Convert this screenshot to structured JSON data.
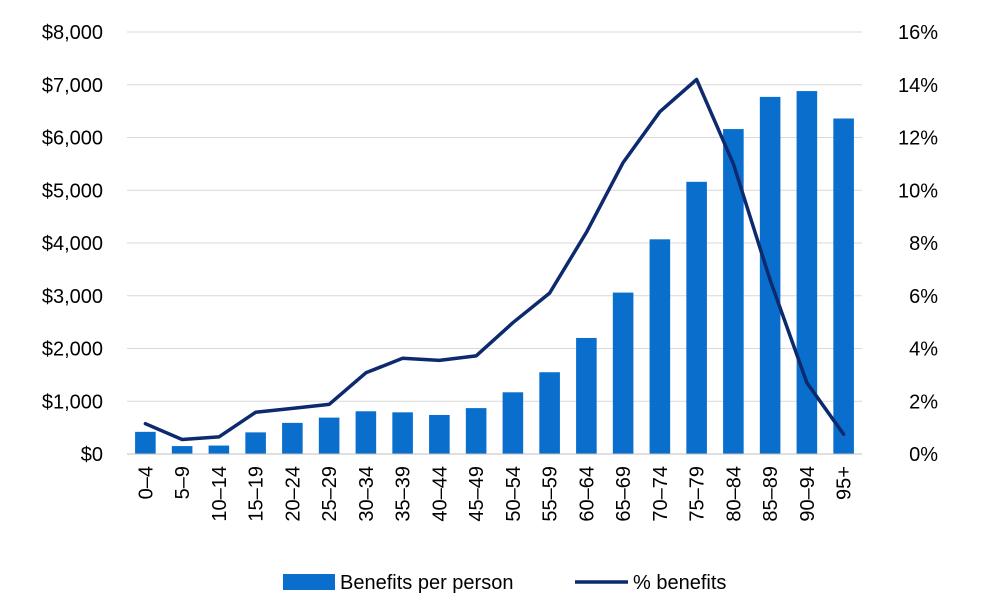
{
  "chart_data": {
    "type": "bar",
    "categories": [
      "0–4",
      "5–9",
      "10–14",
      "15–19",
      "20–24",
      "25–29",
      "30–34",
      "35–39",
      "40–44",
      "45–49",
      "50–54",
      "55–59",
      "60–64",
      "65–69",
      "70–74",
      "75–79",
      "80–84",
      "85–89",
      "90–94",
      "95+"
    ],
    "series": [
      {
        "name": "Benefits per person",
        "kind": "bar",
        "axis": "left",
        "color": "#0a6fcc",
        "values": [
          420,
          150,
          160,
          410,
          590,
          690,
          810,
          790,
          740,
          870,
          1170,
          1550,
          2200,
          3060,
          4070,
          5160,
          6160,
          6770,
          6880,
          6360
        ]
      },
      {
        "name": "% benefits",
        "kind": "line",
        "axis": "right",
        "color": "#0d2a6e",
        "values": [
          1.15,
          0.55,
          0.65,
          1.58,
          1.73,
          1.88,
          3.08,
          3.63,
          3.55,
          3.72,
          4.98,
          6.1,
          8.4,
          11.05,
          12.98,
          14.2,
          11.0,
          6.6,
          2.7,
          0.75
        ]
      }
    ],
    "y_left": {
      "min": 0,
      "max": 8000,
      "ticks": [
        0,
        1000,
        2000,
        3000,
        4000,
        5000,
        6000,
        7000,
        8000
      ],
      "tick_labels": [
        "$0",
        "$1,000",
        "$2,000",
        "$3,000",
        "$4,000",
        "$5,000",
        "$6,000",
        "$7,000",
        "$8,000"
      ]
    },
    "y_right": {
      "min": 0,
      "max": 16,
      "ticks": [
        0,
        2,
        4,
        6,
        8,
        10,
        12,
        14,
        16
      ],
      "tick_labels": [
        "0%",
        "2%",
        "4%",
        "6%",
        "8%",
        "10%",
        "12%",
        "14%",
        "16%"
      ]
    },
    "grid": true,
    "legend_position": "bottom",
    "title": "",
    "xlabel": "",
    "ylabel": ""
  }
}
